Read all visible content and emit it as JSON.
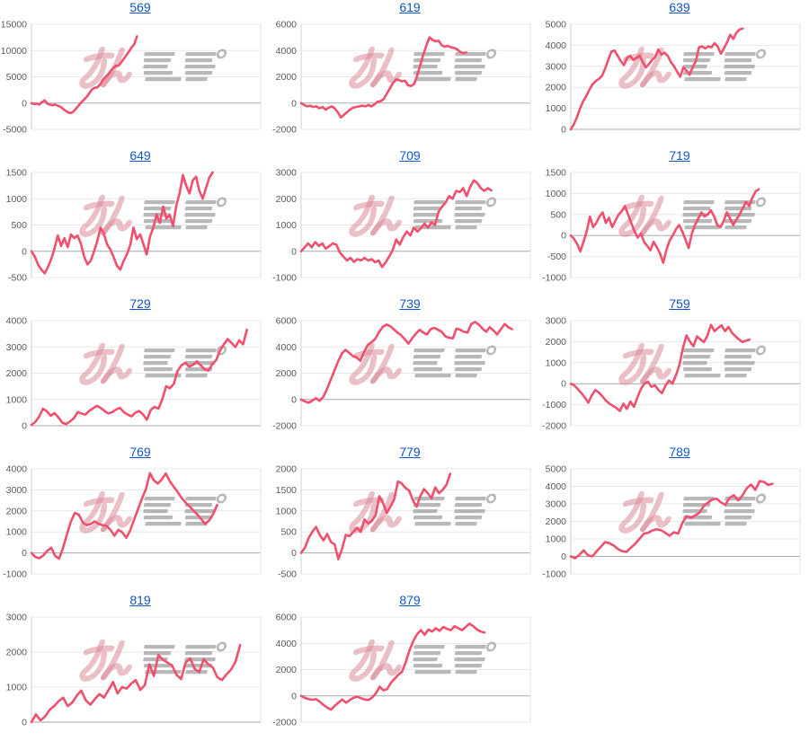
{
  "page": {
    "type": "chart-grid",
    "columns": 3
  },
  "colors": {
    "link": "#1155cc",
    "line": "#f0506e",
    "grid": "#e8e8e8",
    "zero_line": "#a9a9a9",
    "axis_left": "#cfcfcf",
    "right_border": "#e0e0e0",
    "label": "#595959",
    "watermark_pink": "#d98a96",
    "watermark_gray": "#a0a0a0"
  },
  "watermark": {
    "text": "みんレポ"
  },
  "chart_data": [
    {
      "type": "line",
      "title": "569",
      "ylim": [
        -5000,
        15000
      ],
      "yticks": [
        15000,
        10000,
        5000,
        0,
        -5000
      ],
      "x_end": 0.46,
      "values": [
        0,
        -200,
        -100,
        -300,
        200,
        500,
        -100,
        -300,
        -400,
        -300,
        -500,
        -700,
        -1100,
        -1500,
        -1800,
        -1900,
        -1600,
        -1000,
        -400,
        200,
        700,
        1200,
        1900,
        2600,
        2900,
        3000,
        3500,
        4400,
        4900,
        5400,
        6100,
        6600,
        7100,
        7100,
        7700,
        8400,
        9100,
        9800,
        10600,
        11200,
        12700
      ]
    },
    {
      "type": "line",
      "title": "619",
      "ylim": [
        -2000,
        6000
      ],
      "yticks": [
        6000,
        4000,
        2000,
        0,
        -2000
      ],
      "x_end": 0.72,
      "values": [
        0,
        -150,
        -250,
        -200,
        -300,
        -250,
        -400,
        -300,
        -500,
        -350,
        -250,
        -400,
        -700,
        -1100,
        -900,
        -700,
        -500,
        -350,
        -300,
        -250,
        -200,
        -250,
        -150,
        -250,
        -100,
        100,
        150,
        300,
        700,
        1100,
        1500,
        1800,
        1750,
        1650,
        1700,
        1350,
        1300,
        1450,
        2100,
        2900,
        3700,
        4400,
        5000,
        4800,
        4700,
        4750,
        4400,
        4300,
        4350,
        4250,
        4200,
        4100,
        3900,
        3800,
        3850
      ]
    },
    {
      "type": "line",
      "title": "639",
      "ylim": [
        0,
        5000
      ],
      "yticks": [
        5000,
        4000,
        3000,
        2000,
        1000,
        0
      ],
      "x_end": 0.75,
      "values": [
        0,
        250,
        600,
        1000,
        1350,
        1600,
        1900,
        2150,
        2300,
        2400,
        2550,
        2900,
        3300,
        3700,
        3750,
        3500,
        3250,
        3050,
        3400,
        3500,
        3300,
        3400,
        3500,
        3200,
        2950,
        3100,
        3300,
        3450,
        3800,
        3550,
        3650,
        3500,
        3200,
        3000,
        2750,
        2500,
        2950,
        2800,
        2600,
        2950,
        3250,
        3900,
        3950,
        3850,
        3950,
        3900,
        4100,
        3950,
        3600,
        3850,
        4150,
        4500,
        4300,
        4600,
        4750,
        4800
      ]
    },
    {
      "type": "line",
      "title": "649",
      "ylim": [
        -500,
        1500
      ],
      "yticks": [
        1500,
        1000,
        500,
        0,
        -500
      ],
      "x_end": 0.79,
      "values": [
        0,
        -100,
        -250,
        -350,
        -420,
        -300,
        -150,
        50,
        300,
        100,
        250,
        80,
        320,
        250,
        300,
        150,
        -100,
        -250,
        -180,
        0,
        200,
        450,
        330,
        130,
        30,
        -120,
        -280,
        -350,
        -180,
        -60,
        120,
        450,
        230,
        320,
        140,
        -60,
        280,
        450,
        700,
        540,
        850,
        620,
        700,
        480,
        880,
        1100,
        1450,
        1250,
        1100,
        1350,
        1420,
        1150,
        1000,
        1200,
        1400,
        1500
      ]
    },
    {
      "type": "line",
      "title": "709",
      "ylim": [
        -1000,
        3000
      ],
      "yticks": [
        3000,
        2000,
        1000,
        0,
        -1000
      ],
      "x_end": 0.83,
      "values": [
        0,
        150,
        300,
        150,
        350,
        200,
        300,
        100,
        200,
        300,
        250,
        -50,
        -200,
        -350,
        -250,
        -400,
        -300,
        -350,
        -250,
        -350,
        -300,
        -420,
        -350,
        -600,
        -420,
        -200,
        50,
        450,
        250,
        550,
        750,
        600,
        900,
        750,
        880,
        1050,
        900,
        1100,
        1000,
        1500,
        1700,
        1850,
        2100,
        2000,
        2300,
        2250,
        2400,
        2100,
        2450,
        2700,
        2600,
        2400,
        2300,
        2400,
        2320
      ]
    },
    {
      "type": "line",
      "title": "719",
      "ylim": [
        -1000,
        1500
      ],
      "yticks": [
        1500,
        1000,
        500,
        0,
        -500,
        -1000
      ],
      "x_end": 0.82,
      "values": [
        0,
        -80,
        -200,
        -380,
        -150,
        100,
        450,
        200,
        300,
        450,
        550,
        300,
        420,
        200,
        350,
        500,
        580,
        700,
        500,
        300,
        100,
        -50,
        50,
        -150,
        -250,
        -350,
        -150,
        -280,
        -420,
        -650,
        -350,
        -120,
        0,
        150,
        250,
        100,
        -100,
        -300,
        50,
        250,
        400,
        550,
        450,
        500,
        600,
        450,
        250,
        200,
        350,
        550,
        400,
        250,
        380,
        500,
        650,
        800,
        700,
        900,
        1050,
        1100
      ]
    },
    {
      "type": "line",
      "title": "729",
      "ylim": [
        0,
        4000
      ],
      "yticks": [
        4000,
        3000,
        2000,
        1000,
        0
      ],
      "x_end": 0.94,
      "values": [
        30,
        150,
        350,
        650,
        550,
        380,
        480,
        320,
        120,
        60,
        160,
        280,
        520,
        470,
        420,
        560,
        660,
        760,
        680,
        560,
        470,
        520,
        620,
        680,
        520,
        420,
        360,
        500,
        560,
        430,
        230,
        600,
        720,
        650,
        1000,
        1500,
        1430,
        1600,
        2100,
        2300,
        2400,
        2250,
        2320,
        2450,
        2300,
        2150,
        2100,
        2350,
        2500,
        2850,
        3100,
        3300,
        3150,
        3000,
        3250,
        3100,
        3650
      ]
    },
    {
      "type": "line",
      "title": "739",
      "ylim": [
        -2000,
        6000
      ],
      "yticks": [
        6000,
        4000,
        2000,
        0,
        -2000
      ],
      "x_end": 0.92,
      "values": [
        0,
        -150,
        -250,
        -100,
        100,
        -100,
        200,
        800,
        1500,
        2200,
        2900,
        3500,
        3780,
        3550,
        3300,
        3200,
        2950,
        3600,
        4150,
        4350,
        4600,
        5100,
        5500,
        5700,
        5600,
        5350,
        5100,
        4900,
        4600,
        4250,
        4650,
        5000,
        5300,
        5100,
        4950,
        5350,
        5450,
        5300,
        5150,
        4800,
        4700,
        4650,
        5400,
        5300,
        5150,
        5100,
        5750,
        5900,
        5700,
        5400,
        5150,
        5500,
        5250,
        4950,
        5350,
        5750,
        5500,
        5350
      ]
    },
    {
      "type": "line",
      "title": "759",
      "ylim": [
        -2000,
        3000
      ],
      "yticks": [
        3000,
        2000,
        1000,
        0,
        -1000,
        -2000
      ],
      "x_end": 0.78,
      "values": [
        0,
        -80,
        -250,
        -450,
        -650,
        -900,
        -550,
        -300,
        -420,
        -600,
        -800,
        -950,
        -1050,
        -1150,
        -1300,
        -950,
        -1200,
        -850,
        -1100,
        -650,
        -250,
        0,
        100,
        -150,
        -80,
        -300,
        -450,
        -100,
        150,
        0,
        400,
        900,
        1700,
        2300,
        2000,
        1780,
        2250,
        2100,
        1980,
        2300,
        2800,
        2500,
        2650,
        2780,
        2500,
        2700,
        2420,
        2250,
        2100,
        1980,
        2050,
        2100
      ]
    },
    {
      "type": "line",
      "title": "769",
      "ylim": [
        -1000,
        4000
      ],
      "yticks": [
        4000,
        3000,
        2000,
        1000,
        0,
        -1000
      ],
      "x_end": 0.81,
      "values": [
        0,
        -200,
        -250,
        -120,
        100,
        250,
        -150,
        -270,
        250,
        900,
        1500,
        1900,
        1820,
        1450,
        1320,
        1380,
        1500,
        1380,
        1320,
        1280,
        1100,
        820,
        1100,
        980,
        720,
        1080,
        1600,
        2100,
        2600,
        3050,
        3800,
        3450,
        3300,
        3500,
        3780,
        3420,
        3150,
        2900,
        2620,
        2400,
        2220,
        2020,
        1820,
        1600,
        1380,
        1550,
        1850,
        2280
      ]
    },
    {
      "type": "line",
      "title": "779",
      "ylim": [
        -500,
        2000
      ],
      "yticks": [
        2000,
        1500,
        1000,
        500,
        0,
        -500
      ],
      "x_end": 0.65,
      "values": [
        0,
        120,
        350,
        500,
        620,
        430,
        300,
        450,
        260,
        200,
        -150,
        100,
        430,
        400,
        500,
        600,
        500,
        800,
        700,
        760,
        900,
        1350,
        1180,
        950,
        1100,
        1280,
        1700,
        1650,
        1550,
        1480,
        1250,
        1100,
        1350,
        1520,
        1420,
        1300,
        1560,
        1420,
        1500,
        1620,
        1880
      ]
    },
    {
      "type": "line",
      "title": "789",
      "ylim": [
        -1000,
        5000
      ],
      "yticks": [
        5000,
        4000,
        3000,
        2000,
        1000,
        0,
        -1000
      ],
      "x_end": 0.88,
      "values": [
        0,
        -100,
        80,
        350,
        60,
        0,
        280,
        550,
        820,
        760,
        620,
        420,
        300,
        260,
        500,
        720,
        1000,
        1300,
        1350,
        1480,
        1550,
        1500,
        1350,
        1180,
        1380,
        1300,
        1900,
        2300,
        2200,
        2350,
        2500,
        2900,
        3080,
        3250,
        3300,
        3080,
        2950,
        3350,
        3500,
        3200,
        3480,
        3900,
        4100,
        3800,
        4300,
        4250,
        4080,
        4150
      ]
    },
    {
      "type": "line",
      "title": "819",
      "ylim": [
        0,
        3000
      ],
      "yticks": [
        3000,
        2000,
        1000,
        0
      ],
      "x_end": 0.91,
      "values": [
        0,
        220,
        50,
        160,
        350,
        460,
        600,
        700,
        460,
        560,
        760,
        900,
        620,
        500,
        660,
        800,
        700,
        920,
        1150,
        820,
        1000,
        960,
        1100,
        1200,
        920,
        1060,
        1650,
        1320,
        1920,
        1780,
        1700,
        1620,
        1350,
        1230,
        1700,
        1820,
        1520,
        1430,
        1800,
        1650,
        1560,
        1280,
        1200,
        1360,
        1500,
        1720,
        2200
      ]
    },
    {
      "type": "line",
      "title": "879",
      "ylim": [
        -2000,
        6000
      ],
      "yticks": [
        6000,
        4000,
        2000,
        0,
        -2000
      ],
      "x_end": 0.8,
      "values": [
        0,
        -150,
        -250,
        -300,
        -250,
        -450,
        -700,
        -900,
        -1050,
        -750,
        -500,
        -280,
        -520,
        -320,
        -150,
        -60,
        -180,
        -280,
        -320,
        -120,
        200,
        700,
        420,
        520,
        1000,
        1300,
        1620,
        1850,
        2600,
        3500,
        4200,
        4700,
        5000,
        4650,
        5050,
        4900,
        5150,
        4950,
        5250,
        5100,
        5000,
        5300,
        5150,
        5000,
        5250,
        5500,
        5300,
        5050,
        4900,
        4820
      ]
    }
  ]
}
